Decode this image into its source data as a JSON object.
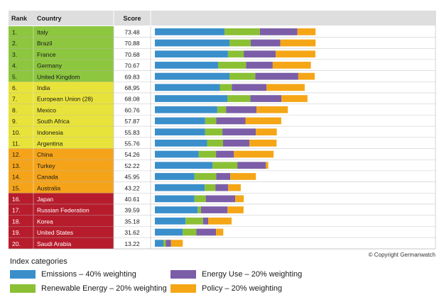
{
  "chart_data": {
    "type": "bar",
    "stacked": true,
    "orientation": "horizontal",
    "headers": {
      "rank": "Rank",
      "country": "Country",
      "score": "Score"
    },
    "rows": [
      {
        "rank": "1.",
        "country": "Italy",
        "score": "73.48",
        "group": "green"
      },
      {
        "rank": "2.",
        "country": "Brazil",
        "score": "70.88",
        "group": "green"
      },
      {
        "rank": "3.",
        "country": "France",
        "score": "70.68",
        "group": "green"
      },
      {
        "rank": "4.",
        "country": "Germany",
        "score": "70.67",
        "group": "green"
      },
      {
        "rank": "5.",
        "country": "United Kingdom",
        "score": "69.83",
        "group": "green"
      },
      {
        "rank": "6.",
        "country": "India",
        "score": "68,95",
        "group": "yellow"
      },
      {
        "rank": "7.",
        "country": "European Union (28)",
        "score": "68.08",
        "group": "yellow"
      },
      {
        "rank": "8.",
        "country": "Mexico",
        "score": "60.76",
        "group": "yellow"
      },
      {
        "rank": "9.",
        "country": "South Africa",
        "score": "57.87",
        "group": "yellow"
      },
      {
        "rank": "10.",
        "country": "Indonesia",
        "score": "55.83",
        "group": "yellow"
      },
      {
        "rank": "11.",
        "country": "Argentina",
        "score": "55.76",
        "group": "yellow"
      },
      {
        "rank": "12.",
        "country": "China",
        "score": "54.26",
        "group": "orange"
      },
      {
        "rank": "13.",
        "country": "Turkey",
        "score": "52.22",
        "group": "orange"
      },
      {
        "rank": "14.",
        "country": "Canada",
        "score": "45.95",
        "group": "orange"
      },
      {
        "rank": "15.",
        "country": "Australia",
        "score": "43.22",
        "group": "orange"
      },
      {
        "rank": "16.",
        "country": "Japan",
        "score": "40.61",
        "group": "red"
      },
      {
        "rank": "17.",
        "country": "Russian Federation",
        "score": "39.59",
        "group": "red"
      },
      {
        "rank": "18.",
        "country": "Korea",
        "score": "35.18",
        "group": "red"
      },
      {
        "rank": "19.",
        "country": "United States",
        "score": "31.62",
        "group": "red"
      },
      {
        "rank": "20.",
        "country": "Saudi Arabia",
        "score": "13.22",
        "group": "red"
      }
    ],
    "series": [
      {
        "name": "Emissions – 40% weighting",
        "color": "#3a8fcb",
        "values": [
          32.7,
          35.0,
          34.3,
          29.7,
          35.0,
          30.5,
          34.0,
          29.3,
          23.6,
          23.6,
          24.5,
          20.6,
          27.1,
          18.6,
          23.4,
          18.6,
          20.1,
          14.4,
          13.1,
          4.0
        ]
      },
      {
        "name": "Renewable Energy – 20% weighting",
        "color": "#8bc034",
        "values": [
          16.6,
          10.0,
          7.4,
          13.1,
          12.1,
          5.6,
          10.8,
          4.1,
          5.2,
          8.1,
          7.5,
          8.1,
          11.6,
          10.2,
          5.0,
          5.3,
          1.5,
          8.2,
          6.4,
          1.1
        ]
      },
      {
        "name": "Energy Use – 20% weighting",
        "color": "#7b5ea7",
        "values": [
          17.6,
          13.9,
          15.0,
          12.5,
          20.2,
          16.3,
          14.6,
          14.3,
          13.7,
          15.7,
          12.4,
          8.4,
          13.3,
          6.6,
          6.0,
          13.8,
          12.5,
          2.4,
          9.2,
          2.5
        ]
      },
      {
        "name": "Policy – 20% weighting",
        "color": "#f5a616",
        "values": [
          8.5,
          16.5,
          18.6,
          17.9,
          7.7,
          17.9,
          12.2,
          14.7,
          16.8,
          9.8,
          12.7,
          18.6,
          1.2,
          12.0,
          5.9,
          4.0,
          7.5,
          11.0,
          3.4,
          5.5
        ]
      }
    ],
    "row_colors": {
      "green": "#8dc63f",
      "yellow": "#e8e33a",
      "orange": "#f5a41a",
      "red": "#b71c2c"
    },
    "xlim": [
      0,
      100
    ],
    "grid": false
  },
  "legend": {
    "title": "Index categories",
    "items": [
      {
        "label": "Emissions – 40% weighting",
        "color": "#3a8fcb"
      },
      {
        "label": "Energy Use – 20% weighting",
        "color": "#7b5ea7"
      },
      {
        "label": "Renewable Energy – 20% weighting",
        "color": "#8bc034"
      },
      {
        "label": "Policy – 20% weighting",
        "color": "#f5a616"
      }
    ]
  },
  "copyright": "© Copyright Germanwatch"
}
